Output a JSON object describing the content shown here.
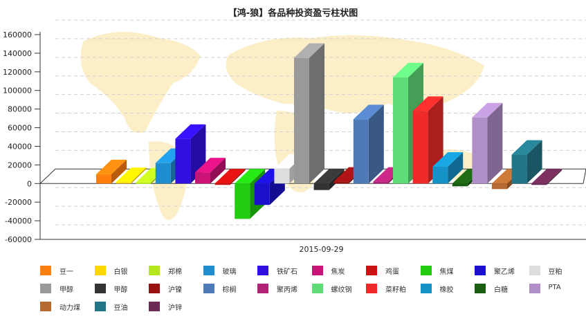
{
  "chart_data": {
    "type": "bar",
    "title": "【鸿-狼】各品种投资盈亏柱状图",
    "xlabel": "",
    "ylabel": "",
    "categories": [
      "2015-09-29"
    ],
    "ylim": [
      -60000,
      160000
    ],
    "yticks": [
      -60000,
      -40000,
      -20000,
      0,
      20000,
      40000,
      60000,
      80000,
      100000,
      120000,
      140000,
      160000
    ],
    "grid": true,
    "legend_position": "bottom",
    "series": [
      {
        "name": "豆一",
        "value": 10000,
        "color": "#ff7f0e"
      },
      {
        "name": "白银",
        "value": 1500,
        "color": "#ffd700"
      },
      {
        "name": "郑棉",
        "value": 1000,
        "color": "#b5e61d"
      },
      {
        "name": "玻璃",
        "value": 22000,
        "color": "#1e8ed0"
      },
      {
        "name": "铁矿石",
        "value": 48000,
        "color": "#2f10e0"
      },
      {
        "name": "焦炭",
        "value": 12000,
        "color": "#cc1177"
      },
      {
        "name": "鸡蛋",
        "value": -1000,
        "color": "#cc1111"
      },
      {
        "name": "焦煤",
        "value": -38000,
        "color": "#22cc11"
      },
      {
        "name": "聚乙烯",
        "value": -23000,
        "color": "#1a10cc"
      },
      {
        "name": "豆粕",
        "value": 16000,
        "color": "#dddddd"
      },
      {
        "name": "甲醇",
        "value": 135000,
        "color": "#999999"
      },
      {
        "name": "甲醇",
        "value": -7000,
        "color": "#333333"
      },
      {
        "name": "沪镍",
        "value": 2000,
        "color": "#991111"
      },
      {
        "name": "棕榈",
        "value": 69000,
        "color": "#4f7ab8"
      },
      {
        "name": "聚丙烯",
        "value": 2000,
        "color": "#b22277"
      },
      {
        "name": "螺纹钢",
        "value": 114000,
        "color": "#5edc78"
      },
      {
        "name": "菜籽粕",
        "value": 78000,
        "color": "#ee2a2a"
      },
      {
        "name": "橡胶",
        "value": 18000,
        "color": "#1592c8"
      },
      {
        "name": "白糖",
        "value": -3000,
        "color": "#1a5e11"
      },
      {
        "name": "PTA",
        "value": 71000,
        "color": "#b08ec8"
      },
      {
        "name": "动力煤",
        "value": -6000,
        "color": "#b46a30"
      },
      {
        "name": "豆油",
        "value": 31000,
        "color": "#237688"
      },
      {
        "name": "沪锌",
        "value": -1500,
        "color": "#6c2b55"
      }
    ]
  }
}
